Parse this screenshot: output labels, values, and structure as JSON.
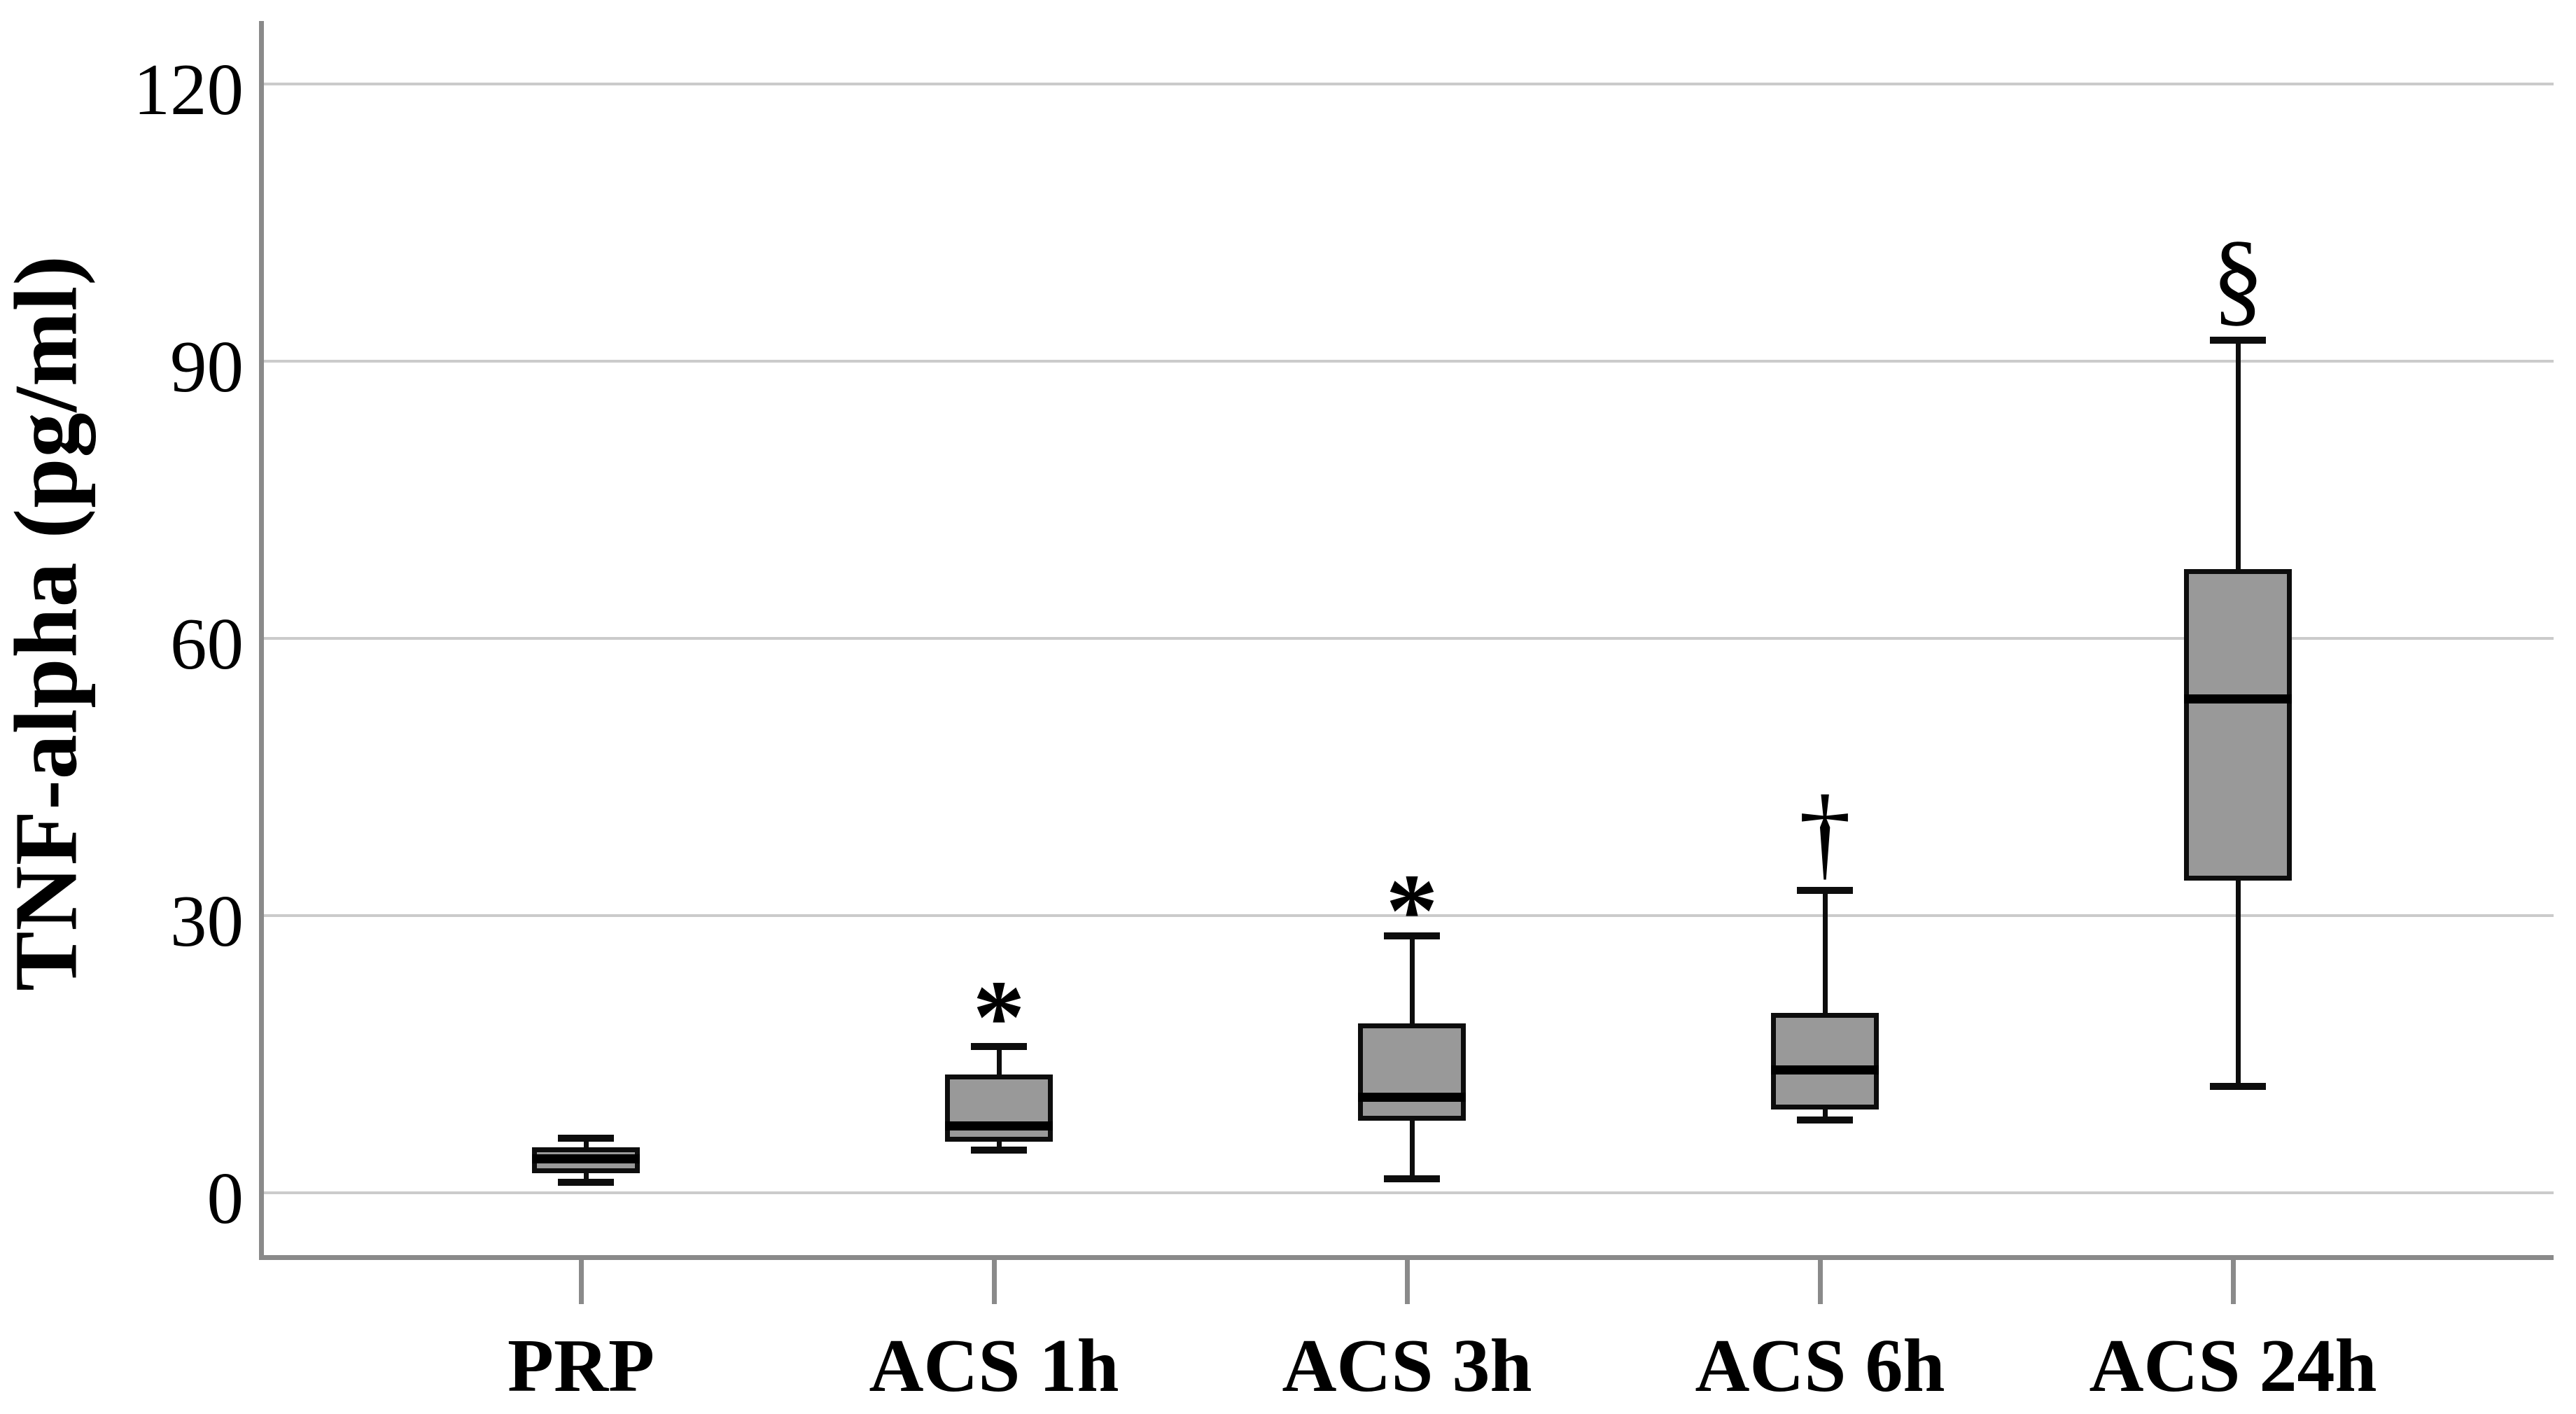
{
  "figure": {
    "background": "#ffffff",
    "y_axis": {
      "title": "TNF-alpha (pg/ml)",
      "tick_labels": [
        "0",
        "30",
        "60",
        "90",
        "120"
      ]
    },
    "x_axis": {
      "category_labels": [
        "PRP",
        "ACS 1h",
        "ACS 3h",
        "ACS 6h",
        "ACS 24h"
      ]
    }
  },
  "chart_data": {
    "type": "boxplot",
    "title": "",
    "xlabel": "",
    "ylabel": "TNF-alpha (pg/ml)",
    "ylim": [
      -7,
      124
    ],
    "yticks": [
      0,
      30,
      60,
      90,
      120
    ],
    "grid": true,
    "legend": false,
    "categories": [
      "PRP",
      "ACS 1h",
      "ACS 3h",
      "ACS 6h",
      "ACS 24h"
    ],
    "series": [
      {
        "category": "PRP",
        "whisker_low": 1.1,
        "q1": 2.1,
        "median": 3.7,
        "q3": 4.9,
        "whisker_high": 5.9,
        "annotation": "",
        "annotation_y": null
      },
      {
        "category": "ACS 1h",
        "whisker_low": 4.6,
        "q1": 5.5,
        "median": 7.3,
        "q3": 12.8,
        "whisker_high": 15.8,
        "annotation": "*",
        "annotation_y": 21
      },
      {
        "category": "ACS 3h",
        "whisker_low": 1.5,
        "q1": 7.8,
        "median": 10.4,
        "q3": 18.3,
        "whisker_high": 27.8,
        "annotation": "*",
        "annotation_y": 32.5
      },
      {
        "category": "ACS 6h",
        "whisker_low": 7.9,
        "q1": 9.0,
        "median": 13.3,
        "q3": 19.5,
        "whisker_high": 32.7,
        "annotation": "†",
        "annotation_y": 39
      },
      {
        "category": "ACS 24h",
        "whisker_low": 11.5,
        "q1": 33.8,
        "median": 53.5,
        "q3": 67.5,
        "whisker_high": 92.3,
        "annotation": "§",
        "annotation_y": 99
      }
    ],
    "colors": {
      "box_fill": "#999999",
      "box_border": "#0d0d0d",
      "median": "#000000",
      "gridline": "#cbcbcb",
      "axis": "#8a8a8a",
      "text": "#000000"
    }
  }
}
